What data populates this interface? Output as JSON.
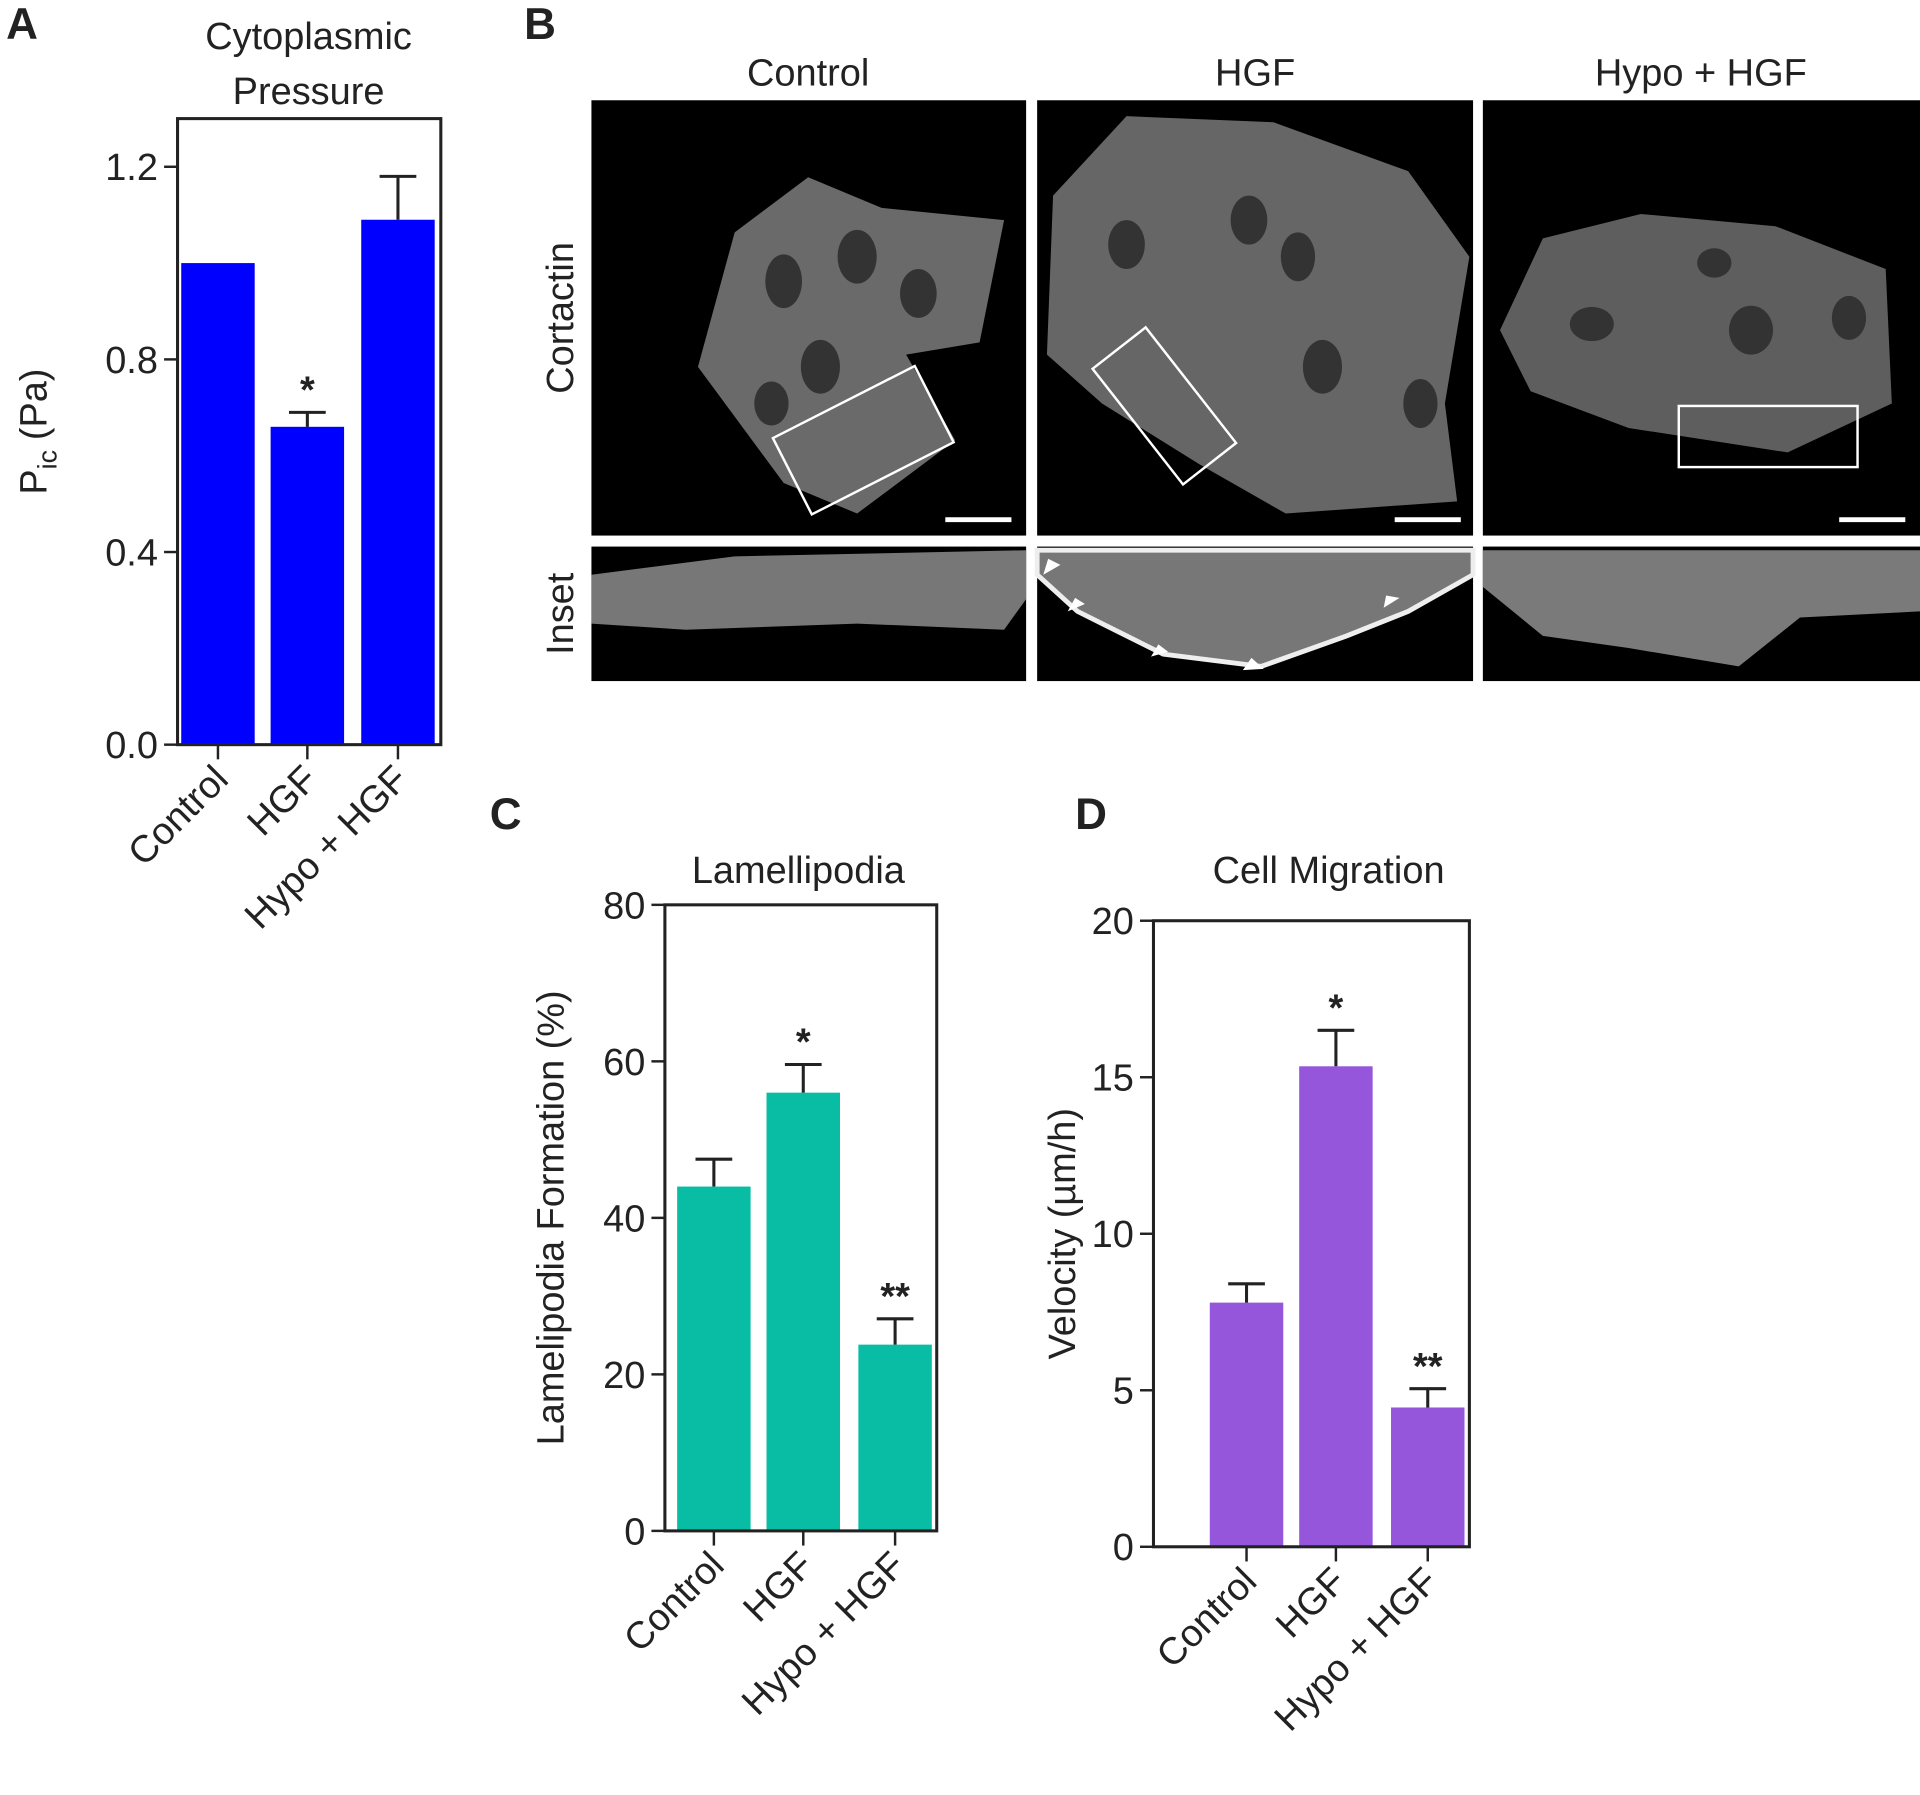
{
  "panel_labels": [
    "A",
    "B",
    "C",
    "D"
  ],
  "image_panel": {
    "columns": [
      "Control",
      "HGF",
      "Hypo + HGF"
    ],
    "rows": [
      "Cortactin",
      "Inset"
    ]
  },
  "chart_data": [
    {
      "type": "bar",
      "title": [
        "Cytoplasmic",
        "Pressure"
      ],
      "ylabel_parts": [
        "P",
        "ic",
        "(Pa)"
      ],
      "categories": [
        "Control",
        "HGF",
        "Hypo + HGF"
      ],
      "values": [
        1.0,
        0.66,
        1.09
      ],
      "errors": [
        null,
        0.03,
        0.09
      ],
      "annotations": [
        null,
        "*",
        null
      ],
      "color": "#0000ff",
      "ylim": [
        0,
        1.3
      ],
      "yticks": [
        {
          "value": 0,
          "label": "0.0"
        },
        0.4,
        0.8,
        1.2
      ]
    },
    {
      "type": "bar",
      "title": [
        "Lamellipodia"
      ],
      "ylabel": "Lamelipodia Formation (%)",
      "categories": [
        "Control",
        "HGF",
        "Hypo + HGF"
      ],
      "values": [
        44,
        56,
        23.8
      ],
      "errors": [
        3.5,
        3.6,
        3.3
      ],
      "annotations": [
        null,
        "*",
        "**"
      ],
      "color": "#09bda5",
      "ylim": [
        0,
        80
      ],
      "yticks": [
        0,
        20,
        40,
        60,
        80
      ]
    },
    {
      "type": "bar",
      "title": [
        "Cell  Migration"
      ],
      "ylabel": "Velocity (µm/h)",
      "categories": [
        "Control",
        "HGF",
        "Hypo + HGF"
      ],
      "values": [
        7.8,
        15.35,
        4.45
      ],
      "errors": [
        0.6,
        1.15,
        0.6
      ],
      "annotations": [
        null,
        "*",
        "**"
      ],
      "color": "#9656dc",
      "ylim": [
        0,
        20
      ],
      "yticks": [
        0,
        5,
        10,
        15,
        20
      ]
    }
  ]
}
